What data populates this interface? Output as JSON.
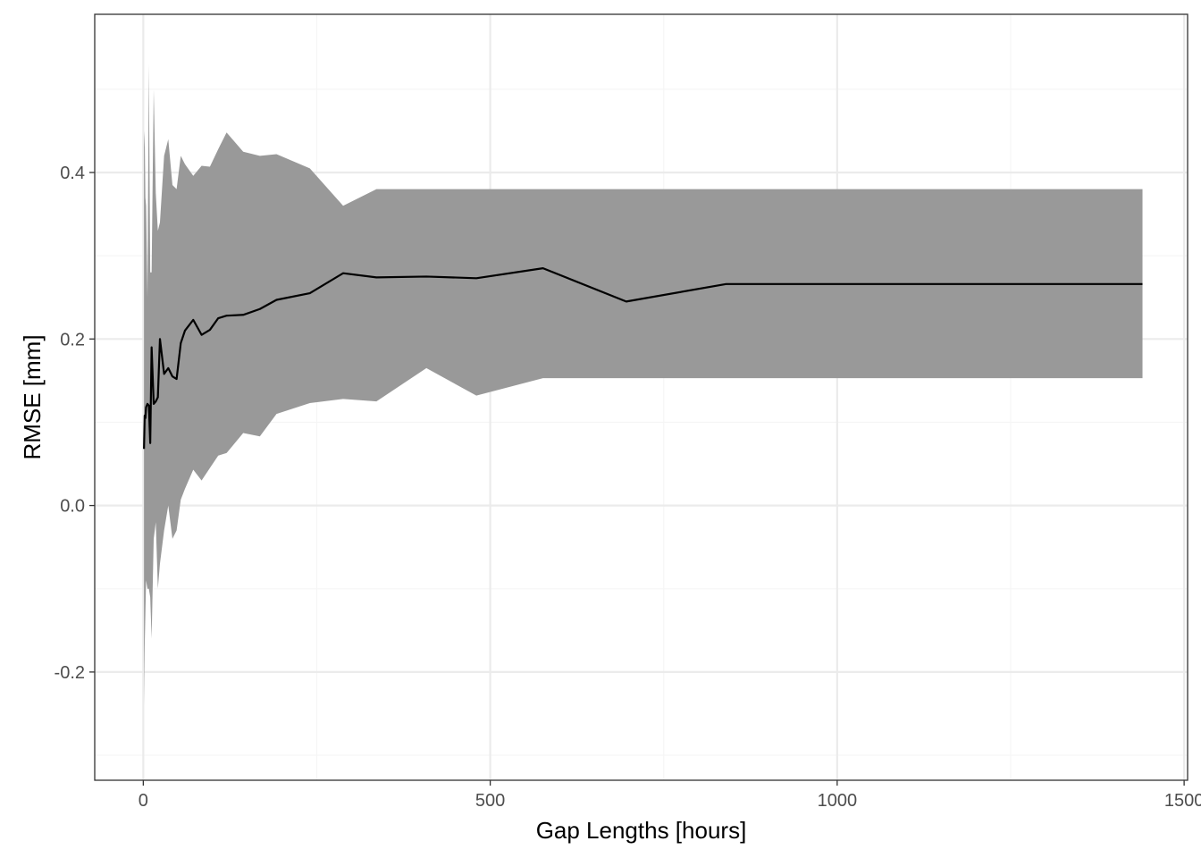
{
  "chart_data": {
    "type": "area",
    "xlabel": "Gap Lengths [hours]",
    "ylabel": "RMSE [mm]",
    "xlim": [
      -70,
      1505
    ],
    "ylim": [
      -0.33,
      0.59
    ],
    "xticks": [
      0,
      500,
      1000,
      1500
    ],
    "xtick_labels": [
      "0",
      "500",
      "1000",
      "1500"
    ],
    "yticks": [
      -0.2,
      0,
      0.2,
      0.4
    ],
    "ytick_labels": [
      "-0.2",
      "0.0",
      "0.2",
      "0.4"
    ],
    "grid": true,
    "theme": "black-white",
    "colors": {
      "ribbon": "#999999",
      "line": "#000000",
      "grid_major": "#ebebeb",
      "grid_minor": "#f5f5f5",
      "panel_border": "#333333"
    },
    "series": [
      {
        "x": [
          1,
          2,
          3,
          4,
          6,
          8,
          10,
          12,
          15,
          18,
          21,
          24,
          30,
          36,
          42,
          48,
          54,
          60,
          72,
          84,
          96,
          108,
          120,
          144,
          168,
          192,
          240,
          288,
          336,
          408,
          480,
          576,
          696,
          840,
          1008,
          1200,
          1440
        ],
        "y": [
          0.068,
          0.108,
          0.105,
          0.118,
          0.122,
          0.12,
          0.075,
          0.19,
          0.122,
          0.125,
          0.13,
          0.2,
          0.158,
          0.165,
          0.155,
          0.152,
          0.195,
          0.21,
          0.223,
          0.205,
          0.211,
          0.225,
          0.228,
          0.229,
          0.236,
          0.247,
          0.255,
          0.279,
          0.274,
          0.275,
          0.273,
          0.285,
          0.245,
          0.266,
          0.266,
          0.266,
          0.266
        ],
        "lower": [
          -0.24,
          -0.17,
          -0.13,
          -0.09,
          -0.1,
          -0.1,
          -0.11,
          -0.16,
          -0.04,
          -0.02,
          -0.1,
          -0.07,
          -0.03,
          0.0,
          -0.04,
          -0.03,
          0.007,
          0.02,
          0.043,
          0.03,
          0.045,
          0.06,
          0.063,
          0.087,
          0.083,
          0.11,
          0.123,
          0.128,
          0.125,
          0.165,
          0.132,
          0.153,
          0.153,
          0.153,
          0.153,
          0.153,
          0.153
        ],
        "upper": [
          0.43,
          0.45,
          0.37,
          0.36,
          0.25,
          0.53,
          0.28,
          0.28,
          0.5,
          0.375,
          0.33,
          0.34,
          0.42,
          0.44,
          0.385,
          0.38,
          0.42,
          0.41,
          0.396,
          0.408,
          0.407,
          0.428,
          0.448,
          0.425,
          0.42,
          0.422,
          0.405,
          0.36,
          0.38,
          0.38,
          0.38,
          0.38,
          0.38,
          0.38,
          0.38,
          0.38,
          0.38
        ]
      }
    ]
  }
}
